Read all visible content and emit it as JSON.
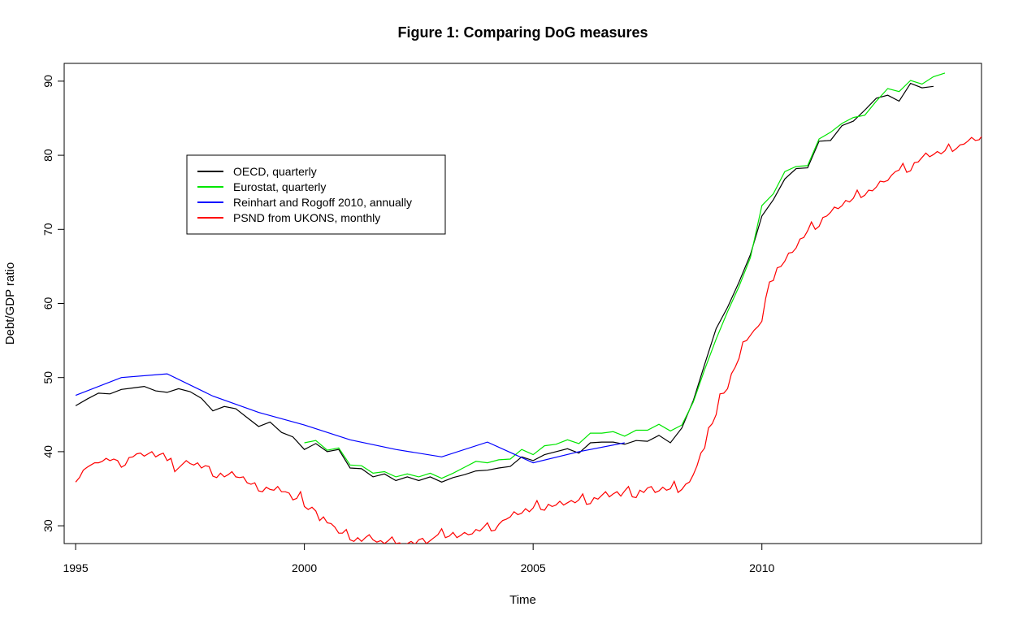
{
  "chart_data": {
    "type": "line",
    "title": "Figure 1: Comparing DoG measures",
    "xlabel": "Time",
    "ylabel": "Debt/GDP ratio",
    "xlim": [
      1994.75,
      2014.8
    ],
    "ylim": [
      27.6,
      92.4
    ],
    "x_ticks": [
      1995,
      2000,
      2005,
      2010
    ],
    "y_ticks": [
      30,
      40,
      50,
      60,
      70,
      80,
      90
    ],
    "grid": false,
    "legend_position": "top-left",
    "series": [
      {
        "name": "OECD, quarterly",
        "color": "#000000",
        "x": [
          1995,
          1995.25,
          1995.5,
          1995.75,
          1996,
          1996.25,
          1996.5,
          1996.75,
          1997,
          1997.25,
          1997.5,
          1997.75,
          1998,
          1998.25,
          1998.5,
          1998.75,
          1999,
          1999.25,
          1999.5,
          1999.75,
          2000,
          2000.25,
          2000.5,
          2000.75,
          2001,
          2001.25,
          2001.5,
          2001.75,
          2002,
          2002.25,
          2002.5,
          2002.75,
          2003,
          2003.25,
          2003.5,
          2003.75,
          2004,
          2004.25,
          2004.5,
          2004.75,
          2005,
          2005.25,
          2005.5,
          2005.75,
          2006,
          2006.25,
          2006.5,
          2006.75,
          2007,
          2007.25,
          2007.5,
          2007.75,
          2008,
          2008.25,
          2008.5,
          2008.75,
          2009,
          2009.25,
          2009.5,
          2009.75,
          2010,
          2010.25,
          2010.5,
          2010.75,
          2011,
          2011.25,
          2011.5,
          2011.75,
          2012,
          2012.25,
          2012.5,
          2012.75,
          2013,
          2013.25,
          2013.5,
          2013.75
        ],
        "y": [
          46.2,
          47.1,
          47.9,
          47.8,
          48.4,
          48.6,
          48.8,
          48.2,
          48.0,
          48.5,
          48.1,
          47.2,
          45.5,
          46.1,
          45.8,
          44.6,
          43.4,
          44.0,
          42.6,
          42.0,
          40.3,
          41.1,
          40.0,
          40.3,
          37.8,
          37.7,
          36.6,
          37.0,
          36.1,
          36.6,
          36.1,
          36.6,
          35.9,
          36.5,
          36.9,
          37.4,
          37.5,
          37.8,
          38.0,
          39.3,
          38.8,
          39.6,
          40.0,
          40.4,
          39.8,
          41.2,
          41.3,
          41.3,
          41.0,
          41.5,
          41.4,
          42.2,
          41.2,
          43.2,
          46.9,
          51.8,
          56.6,
          59.5,
          62.9,
          66.6,
          71.8,
          74.0,
          76.8,
          78.2,
          78.3,
          81.9,
          82.0,
          84.0,
          84.6,
          86.1,
          87.7,
          88.1,
          87.3,
          89.7,
          89.1,
          89.3
        ]
      },
      {
        "name": "Eurostat, quarterly",
        "color": "#00e600",
        "x": [
          2000,
          2000.25,
          2000.5,
          2000.75,
          2001,
          2001.25,
          2001.5,
          2001.75,
          2002,
          2002.25,
          2002.5,
          2002.75,
          2003,
          2003.25,
          2003.5,
          2003.75,
          2004,
          2004.25,
          2004.5,
          2004.75,
          2005,
          2005.25,
          2005.5,
          2005.75,
          2006,
          2006.25,
          2006.5,
          2006.75,
          2007,
          2007.25,
          2007.5,
          2007.75,
          2008,
          2008.25,
          2008.5,
          2008.75,
          2009,
          2009.25,
          2009.5,
          2009.75,
          2010,
          2010.25,
          2010.5,
          2010.75,
          2011,
          2011.25,
          2011.5,
          2011.75,
          2012,
          2012.25,
          2012.5,
          2012.75,
          2013,
          2013.25,
          2013.5,
          2013.75,
          2014
        ],
        "y": [
          41.2,
          41.5,
          40.2,
          40.5,
          38.2,
          38.1,
          37.1,
          37.3,
          36.6,
          37.0,
          36.6,
          37.1,
          36.4,
          37.1,
          37.9,
          38.7,
          38.5,
          38.9,
          39.0,
          40.3,
          39.6,
          40.8,
          41.0,
          41.6,
          41.1,
          42.5,
          42.5,
          42.7,
          42.1,
          42.9,
          42.9,
          43.7,
          42.8,
          43.6,
          46.7,
          51.1,
          55.2,
          58.9,
          62.3,
          66.2,
          73.2,
          74.8,
          77.8,
          78.5,
          78.6,
          82.2,
          83.1,
          84.3,
          85.1,
          85.4,
          87.3,
          89.0,
          88.6,
          90.1,
          89.6,
          90.6,
          91.1
        ]
      },
      {
        "name": "Reinhart and Rogoff 2010, annually",
        "color": "#0000ff",
        "x": [
          1995,
          1996,
          1997,
          1998,
          1999,
          2000,
          2001,
          2002,
          2003,
          2004,
          2005,
          2006,
          2007
        ],
        "y": [
          47.6,
          50.0,
          50.5,
          47.5,
          45.3,
          43.6,
          41.6,
          40.3,
          39.3,
          41.3,
          38.5,
          40.0,
          41.2
        ]
      },
      {
        "name": "PSND from UKONS, monthly",
        "color": "#ff0000",
        "x_start": 1995,
        "x_step": 0.08333333,
        "y": [
          35.9,
          36.5,
          37.5,
          37.9,
          38.2,
          38.5,
          38.5,
          38.7,
          39.1,
          38.8,
          39.0,
          38.8,
          37.9,
          38.2,
          39.2,
          39.3,
          39.7,
          39.8,
          39.4,
          39.7,
          40.0,
          39.3,
          39.6,
          39.8,
          38.8,
          39.1,
          37.3,
          37.8,
          38.3,
          38.8,
          38.4,
          38.2,
          38.5,
          37.8,
          38.1,
          38.0,
          36.7,
          36.5,
          37.1,
          36.6,
          36.9,
          37.3,
          36.6,
          36.5,
          36.6,
          35.8,
          35.6,
          35.8,
          34.7,
          34.6,
          35.2,
          34.9,
          34.8,
          35.3,
          34.6,
          34.6,
          34.4,
          33.5,
          33.7,
          34.6,
          32.6,
          32.2,
          32.5,
          32.0,
          30.7,
          31.2,
          30.4,
          30.3,
          29.8,
          29.0,
          29.0,
          29.5,
          28.1,
          27.9,
          28.4,
          27.9,
          28.4,
          28.8,
          28.1,
          27.8,
          28.0,
          27.6,
          28.0,
          28.5,
          27.6,
          27.7,
          27.3,
          27.6,
          27.9,
          27.5,
          28.1,
          28.3,
          27.6,
          28.0,
          28.4,
          28.8,
          29.6,
          28.4,
          28.6,
          29.1,
          28.4,
          28.7,
          29.1,
          28.8,
          28.9,
          29.5,
          29.3,
          29.8,
          30.4,
          29.3,
          29.4,
          30.2,
          30.7,
          30.9,
          31.2,
          31.9,
          31.5,
          31.7,
          32.3,
          31.9,
          32.4,
          33.4,
          32.2,
          32.1,
          32.9,
          32.6,
          32.8,
          33.3,
          32.8,
          33.1,
          33.4,
          33.1,
          33.5,
          34.3,
          32.9,
          33.0,
          33.8,
          33.6,
          34.1,
          34.6,
          33.9,
          34.3,
          34.6,
          34.0,
          34.7,
          35.3,
          33.9,
          33.8,
          34.8,
          34.5,
          35.1,
          35.3,
          34.5,
          34.7,
          35.2,
          34.8,
          35.0,
          36.0,
          34.5,
          34.9,
          35.6,
          35.9,
          36.9,
          38.1,
          39.8,
          40.5,
          43.2,
          43.8,
          45.0,
          47.8,
          47.9,
          48.5,
          50.5,
          51.4,
          52.6,
          54.8,
          55.0,
          55.7,
          56.4,
          56.9,
          57.6,
          60.7,
          62.9,
          63.1,
          64.8,
          65.0,
          65.7,
          66.8,
          66.9,
          67.5,
          68.7,
          68.9,
          69.8,
          71.0,
          70.0,
          70.4,
          71.6,
          71.8,
          72.3,
          73.0,
          72.8,
          73.2,
          73.9,
          73.7,
          74.2,
          75.3,
          74.3,
          74.6,
          75.3,
          75.2,
          75.7,
          76.5,
          76.4,
          76.6,
          77.3,
          77.8,
          78.0,
          78.9,
          77.7,
          77.9,
          79.0,
          79.1,
          79.7,
          80.3,
          79.8,
          80.1,
          80.5,
          80.2,
          80.6,
          81.5,
          80.5,
          80.9,
          81.4,
          81.5,
          81.9,
          82.4,
          82.0,
          82.1,
          82.8,
          82.9
        ]
      }
    ]
  }
}
